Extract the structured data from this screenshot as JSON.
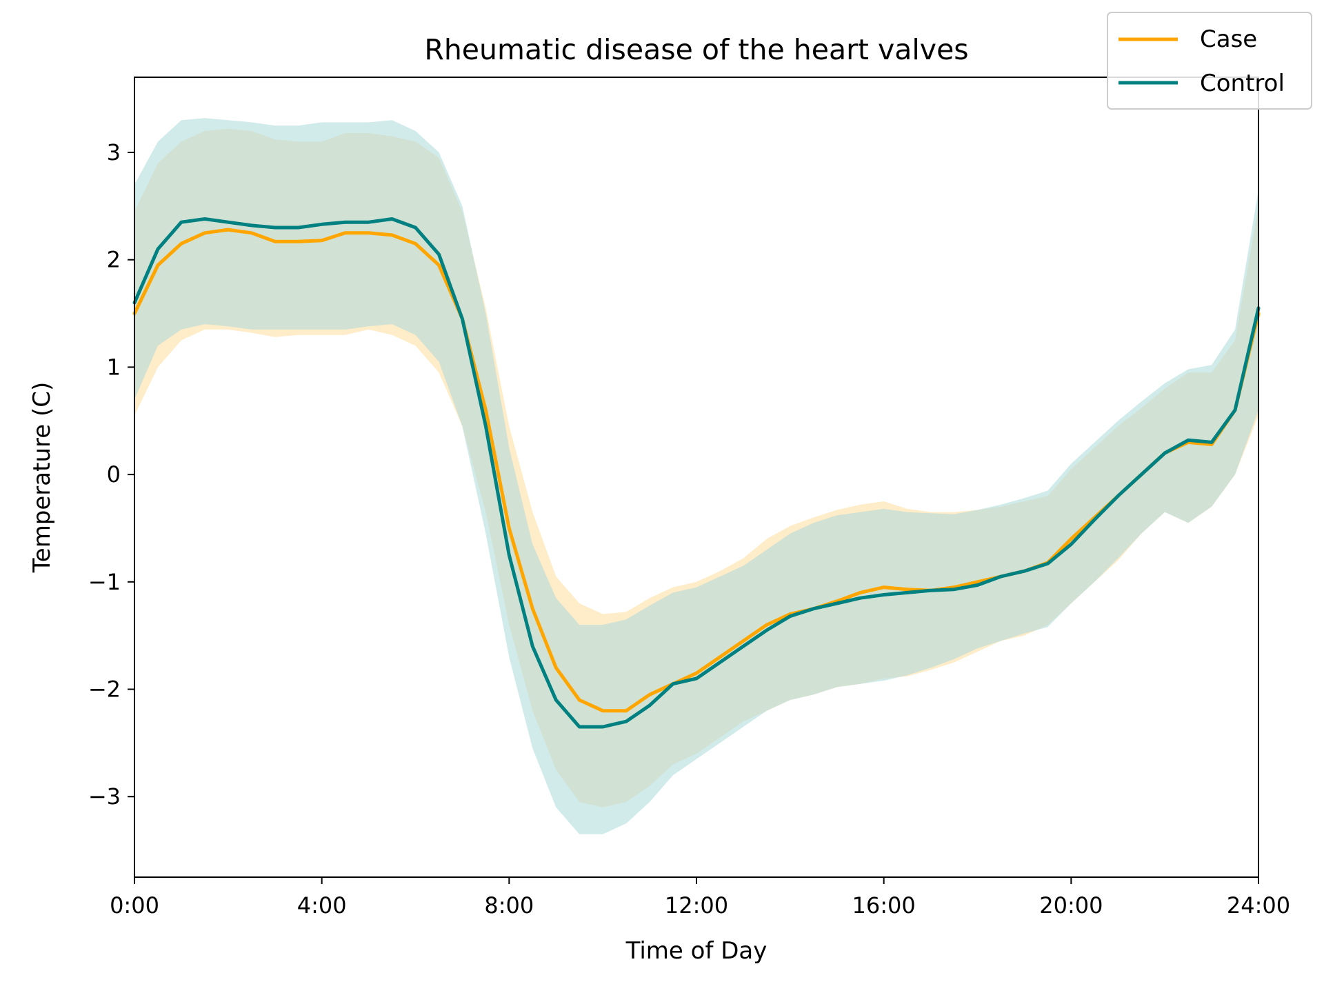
{
  "chart_data": {
    "type": "line",
    "title": "Rheumatic disease of the heart valves",
    "xlabel": "Time of Day",
    "ylabel": "Temperature (C)",
    "xlim": [
      0,
      24
    ],
    "ylim": [
      -3.75,
      3.7
    ],
    "x_ticks": [
      {
        "value": 0,
        "label": "0:00"
      },
      {
        "value": 4,
        "label": "4:00"
      },
      {
        "value": 8,
        "label": "8:00"
      },
      {
        "value": 12,
        "label": "12:00"
      },
      {
        "value": 16,
        "label": "16:00"
      },
      {
        "value": 20,
        "label": "20:00"
      },
      {
        "value": 24,
        "label": "24:00"
      }
    ],
    "y_ticks": [
      {
        "value": 3,
        "label": "3"
      },
      {
        "value": 2,
        "label": "2"
      },
      {
        "value": 1,
        "label": "1"
      },
      {
        "value": 0,
        "label": "0"
      },
      {
        "value": -1,
        "label": "−1"
      },
      {
        "value": -2,
        "label": "−2"
      },
      {
        "value": -3,
        "label": "−3"
      }
    ],
    "legend_position": "top-right",
    "grid": false,
    "x": [
      0,
      0.5,
      1,
      1.5,
      2,
      2.5,
      3,
      3.5,
      4,
      4.5,
      5,
      5.5,
      6,
      6.5,
      7,
      7.5,
      8,
      8.5,
      9,
      9.5,
      10,
      10.5,
      11,
      11.5,
      12,
      12.5,
      13,
      13.5,
      14,
      14.5,
      15,
      15.5,
      16,
      16.5,
      17,
      17.5,
      18,
      18.5,
      19,
      19.5,
      20,
      20.5,
      21,
      21.5,
      22,
      22.5,
      23,
      23.5,
      24
    ],
    "series": [
      {
        "name": "Case",
        "color": "#FFA500",
        "band_color": "#FFE4B0",
        "values": [
          1.5,
          1.95,
          2.15,
          2.25,
          2.28,
          2.25,
          2.17,
          2.17,
          2.18,
          2.25,
          2.25,
          2.23,
          2.15,
          1.95,
          1.45,
          0.6,
          -0.5,
          -1.25,
          -1.8,
          -2.1,
          -2.2,
          -2.2,
          -2.05,
          -1.95,
          -1.85,
          -1.7,
          -1.55,
          -1.4,
          -1.3,
          -1.25,
          -1.18,
          -1.1,
          -1.05,
          -1.07,
          -1.08,
          -1.05,
          -1.0,
          -0.95,
          -0.9,
          -0.82,
          -0.6,
          -0.4,
          -0.2,
          0.0,
          0.2,
          0.3,
          0.28,
          0.6,
          1.5
        ],
        "lower": [
          0.55,
          1.0,
          1.25,
          1.35,
          1.35,
          1.32,
          1.28,
          1.3,
          1.3,
          1.3,
          1.35,
          1.3,
          1.2,
          0.95,
          0.45,
          -0.35,
          -1.4,
          -2.2,
          -2.75,
          -3.05,
          -3.1,
          -3.05,
          -2.9,
          -2.7,
          -2.6,
          -2.45,
          -2.3,
          -2.2,
          -2.1,
          -2.05,
          -1.98,
          -1.95,
          -1.9,
          -1.88,
          -1.82,
          -1.75,
          -1.65,
          -1.55,
          -1.5,
          -1.4,
          -1.2,
          -1.0,
          -0.8,
          -0.55,
          -0.35,
          -0.45,
          -0.3,
          0.0,
          0.55
        ],
        "upper": [
          2.45,
          2.9,
          3.1,
          3.2,
          3.22,
          3.2,
          3.12,
          3.1,
          3.1,
          3.18,
          3.18,
          3.15,
          3.1,
          2.95,
          2.45,
          1.55,
          0.45,
          -0.35,
          -0.95,
          -1.2,
          -1.3,
          -1.28,
          -1.15,
          -1.05,
          -1.0,
          -0.9,
          -0.78,
          -0.6,
          -0.48,
          -0.4,
          -0.33,
          -0.28,
          -0.25,
          -0.32,
          -0.35,
          -0.35,
          -0.33,
          -0.3,
          -0.25,
          -0.2,
          0.05,
          0.25,
          0.45,
          0.62,
          0.8,
          0.95,
          0.95,
          1.25,
          2.5
        ]
      },
      {
        "name": "Control",
        "color": "#008080",
        "band_color": "#B2DCDC",
        "values": [
          1.6,
          2.1,
          2.35,
          2.38,
          2.35,
          2.32,
          2.3,
          2.3,
          2.33,
          2.35,
          2.35,
          2.38,
          2.3,
          2.05,
          1.45,
          0.45,
          -0.75,
          -1.6,
          -2.1,
          -2.35,
          -2.35,
          -2.3,
          -2.15,
          -1.95,
          -1.9,
          -1.75,
          -1.6,
          -1.45,
          -1.32,
          -1.25,
          -1.2,
          -1.15,
          -1.12,
          -1.1,
          -1.08,
          -1.07,
          -1.03,
          -0.95,
          -0.9,
          -0.83,
          -0.65,
          -0.42,
          -0.2,
          0.0,
          0.2,
          0.32,
          0.3,
          0.6,
          1.55
        ],
        "lower": [
          0.7,
          1.2,
          1.35,
          1.4,
          1.38,
          1.35,
          1.35,
          1.35,
          1.35,
          1.35,
          1.38,
          1.4,
          1.3,
          1.05,
          0.45,
          -0.55,
          -1.7,
          -2.55,
          -3.1,
          -3.35,
          -3.35,
          -3.25,
          -3.05,
          -2.8,
          -2.65,
          -2.5,
          -2.35,
          -2.2,
          -2.1,
          -2.05,
          -1.98,
          -1.95,
          -1.92,
          -1.87,
          -1.8,
          -1.72,
          -1.62,
          -1.55,
          -1.48,
          -1.42,
          -1.2,
          -1.0,
          -0.78,
          -0.55,
          -0.35,
          -0.45,
          -0.3,
          0.0,
          0.6
        ],
        "upper": [
          2.7,
          3.1,
          3.3,
          3.32,
          3.3,
          3.28,
          3.25,
          3.25,
          3.28,
          3.28,
          3.28,
          3.3,
          3.2,
          3.0,
          2.5,
          1.5,
          0.25,
          -0.65,
          -1.15,
          -1.4,
          -1.4,
          -1.35,
          -1.22,
          -1.1,
          -1.05,
          -0.95,
          -0.85,
          -0.7,
          -0.55,
          -0.45,
          -0.38,
          -0.35,
          -0.32,
          -0.35,
          -0.36,
          -0.37,
          -0.33,
          -0.28,
          -0.22,
          -0.15,
          0.1,
          0.3,
          0.5,
          0.68,
          0.85,
          0.98,
          1.02,
          1.35,
          2.65
        ]
      }
    ]
  }
}
